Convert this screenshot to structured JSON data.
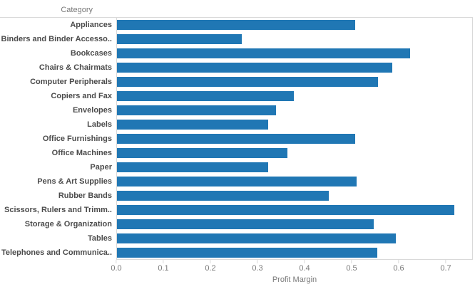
{
  "chart": {
    "colors": {
      "bar": "#2077b4",
      "grid": "#d9d9d9",
      "axis_text": "#787878",
      "category_text": "#4b4b4b"
    }
  },
  "chart_data": {
    "type": "bar",
    "orientation": "horizontal",
    "title": "",
    "ylabel_header": "Category",
    "xlabel": "Profit Margin",
    "categories": [
      "Appliances",
      "Binders and Binder Accesso..",
      "Bookcases",
      "Chairs & Chairmats",
      "Computer Peripherals",
      "Copiers and Fax",
      "Envelopes",
      "Labels",
      "Office Furnishings",
      "Office Machines",
      "Paper",
      "Pens & Art Supplies",
      "Rubber Bands",
      "Scissors, Rulers and Trimm..",
      "Storage & Organization",
      "Tables",
      "Telephones and Communica.."
    ],
    "values": [
      0.507,
      0.267,
      0.624,
      0.586,
      0.556,
      0.378,
      0.34,
      0.323,
      0.508,
      0.363,
      0.323,
      0.511,
      0.452,
      0.718,
      0.547,
      0.594,
      0.554
    ],
    "xlim": [
      0,
      0.7576
    ],
    "x_tick_labels": [
      "0.0",
      "0.1",
      "0.2",
      "0.3",
      "0.4",
      "0.5",
      "0.6",
      "0.7"
    ],
    "grid": false,
    "legend": "none"
  }
}
